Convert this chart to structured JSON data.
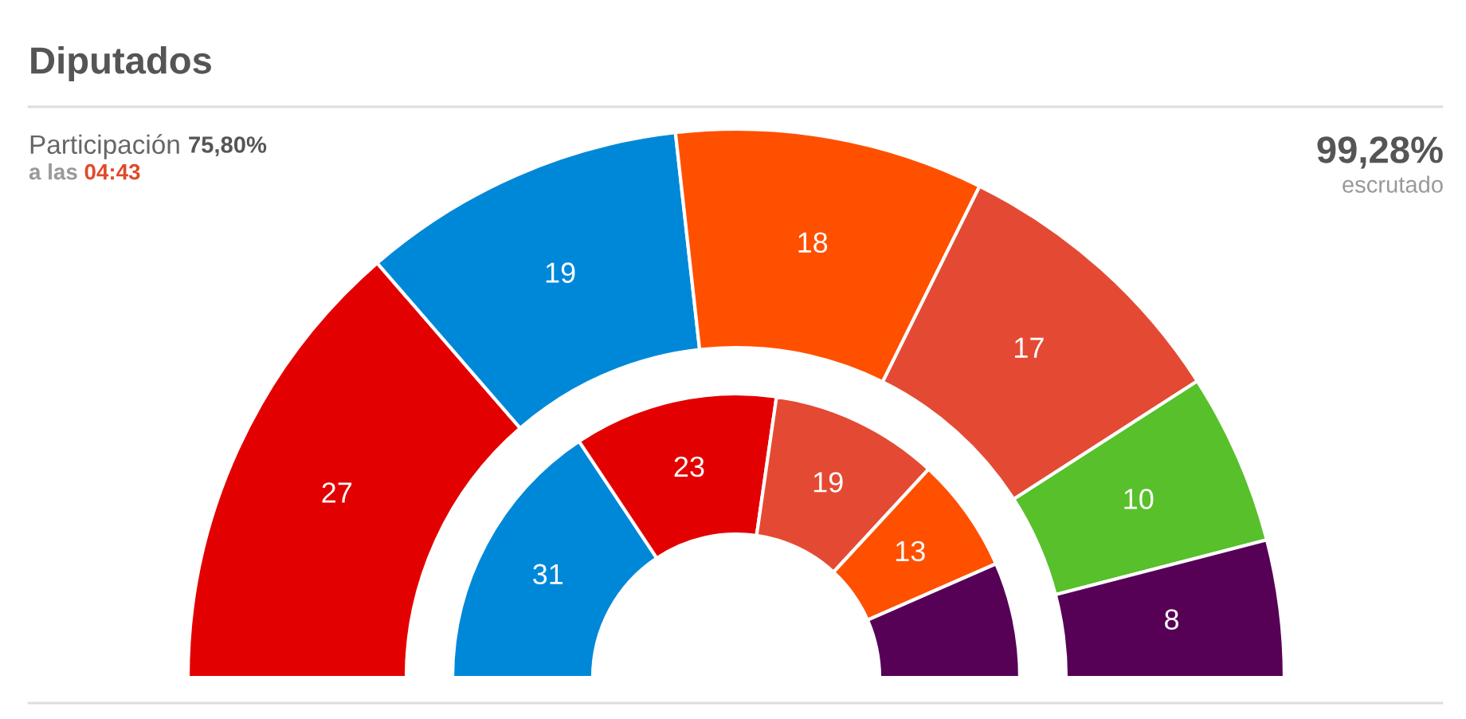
{
  "chart_data": {
    "type": "donut",
    "title": "Diputados",
    "categories": [
      null,
      null,
      null,
      null,
      null,
      null
    ],
    "series": [
      {
        "values": [
          27,
          19,
          18,
          17,
          10,
          8
        ],
        "colors": [
          "#e30000",
          "#0088d8",
          "#ff5000",
          "#e44a33",
          "#57c02a",
          "#560056"
        ],
        "value_labels": [
          "27",
          "19",
          "18",
          "17",
          "10",
          "8"
        ]
      },
      {
        "values": [
          31,
          23,
          19,
          13,
          13,
          null
        ],
        "colors": [
          "#0088d8",
          "#e30000",
          "#e44a33",
          "#ff5000",
          "#560056",
          null
        ],
        "value_labels": [
          "31",
          "23",
          "19",
          "13",
          null,
          null
        ]
      }
    ],
    "annotations": [
      "Participación",
      "75,80%",
      "a las",
      "04:43",
      "99,28%",
      "escrutado"
    ]
  }
}
